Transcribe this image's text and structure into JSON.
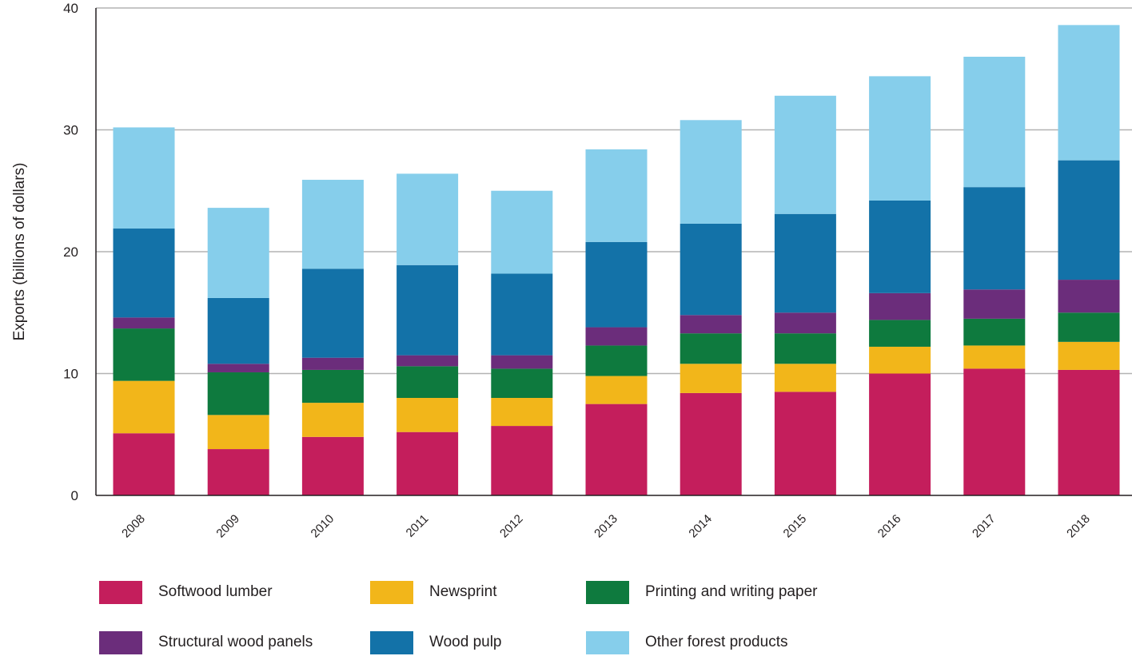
{
  "chart_data": {
    "type": "bar",
    "stacked": true,
    "ylabel": "Exports (billions of dollars)",
    "xlabel": "",
    "ylim": [
      0,
      40
    ],
    "yticks": [
      0,
      10,
      20,
      30,
      40
    ],
    "grid": true,
    "legend_position": "bottom",
    "categories": [
      "2008",
      "2009",
      "2010",
      "2011",
      "2012",
      "2013",
      "2014",
      "2015",
      "2016",
      "2017",
      "2018"
    ],
    "series": [
      {
        "name": "Softwood lumber",
        "color": "#c41e5c",
        "values": [
          5.1,
          3.8,
          4.8,
          5.2,
          5.7,
          7.5,
          8.4,
          8.5,
          10.0,
          10.4,
          10.3
        ]
      },
      {
        "name": "Newsprint",
        "color": "#f2b61a",
        "values": [
          4.3,
          2.8,
          2.8,
          2.8,
          2.3,
          2.3,
          2.4,
          2.3,
          2.2,
          1.9,
          2.3
        ]
      },
      {
        "name": "Printing and writing paper",
        "color": "#0e7a3e",
        "values": [
          4.3,
          3.5,
          2.7,
          2.6,
          2.4,
          2.5,
          2.5,
          2.5,
          2.2,
          2.2,
          2.4
        ]
      },
      {
        "name": "Structural wood panels",
        "color": "#6b2d7b",
        "values": [
          0.9,
          0.7,
          1.0,
          0.9,
          1.1,
          1.5,
          1.5,
          1.7,
          2.2,
          2.4,
          2.7
        ]
      },
      {
        "name": "Wood pulp",
        "color": "#1372a8",
        "values": [
          7.3,
          5.4,
          7.3,
          7.4,
          6.7,
          7.0,
          7.5,
          8.1,
          7.6,
          8.4,
          9.8
        ]
      },
      {
        "name": "Other forest products",
        "color": "#86ceeb",
        "values": [
          8.3,
          7.4,
          7.3,
          7.5,
          6.8,
          7.6,
          8.5,
          9.7,
          10.2,
          10.7,
          11.1
        ]
      }
    ]
  }
}
